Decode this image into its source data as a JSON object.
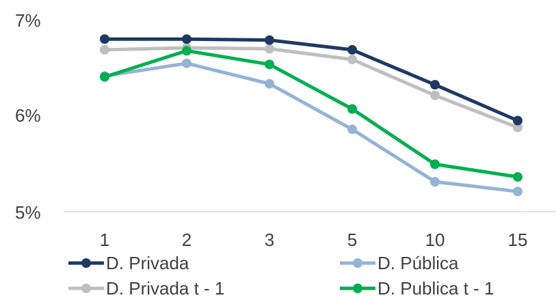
{
  "chart_data": {
    "type": "line",
    "x": [
      "1",
      "2",
      "3",
      "5",
      "10",
      "15"
    ],
    "ylim": [
      0.05,
      0.07
    ],
    "yticks": [
      {
        "value": 0.05,
        "label": "5%"
      },
      {
        "value": 0.06,
        "label": "6%"
      },
      {
        "value": 0.07,
        "label": "7%"
      }
    ],
    "grid": false,
    "legend_position": "bottom",
    "series": [
      {
        "key": "privada",
        "name": "D. Privada",
        "color": "#1f3864",
        "values": [
          0.0678,
          0.0678,
          0.0677,
          0.0667,
          0.0631,
          0.0594
        ]
      },
      {
        "key": "publica",
        "name": "D. Pública",
        "color": "#95b3d7",
        "values": [
          0.064,
          0.0653,
          0.0632,
          0.0585,
          0.0531,
          0.0521
        ]
      },
      {
        "key": "privada_t1",
        "name": "D. Privada t - 1",
        "color": "#bfbfbf",
        "values": [
          0.0667,
          0.0669,
          0.0668,
          0.0657,
          0.062,
          0.0587
        ]
      },
      {
        "key": "publica_t1",
        "name": "D. Publica t - 1",
        "color": "#00b050",
        "values": [
          0.0639,
          0.0666,
          0.0652,
          0.0606,
          0.0549,
          0.0536
        ]
      }
    ]
  }
}
